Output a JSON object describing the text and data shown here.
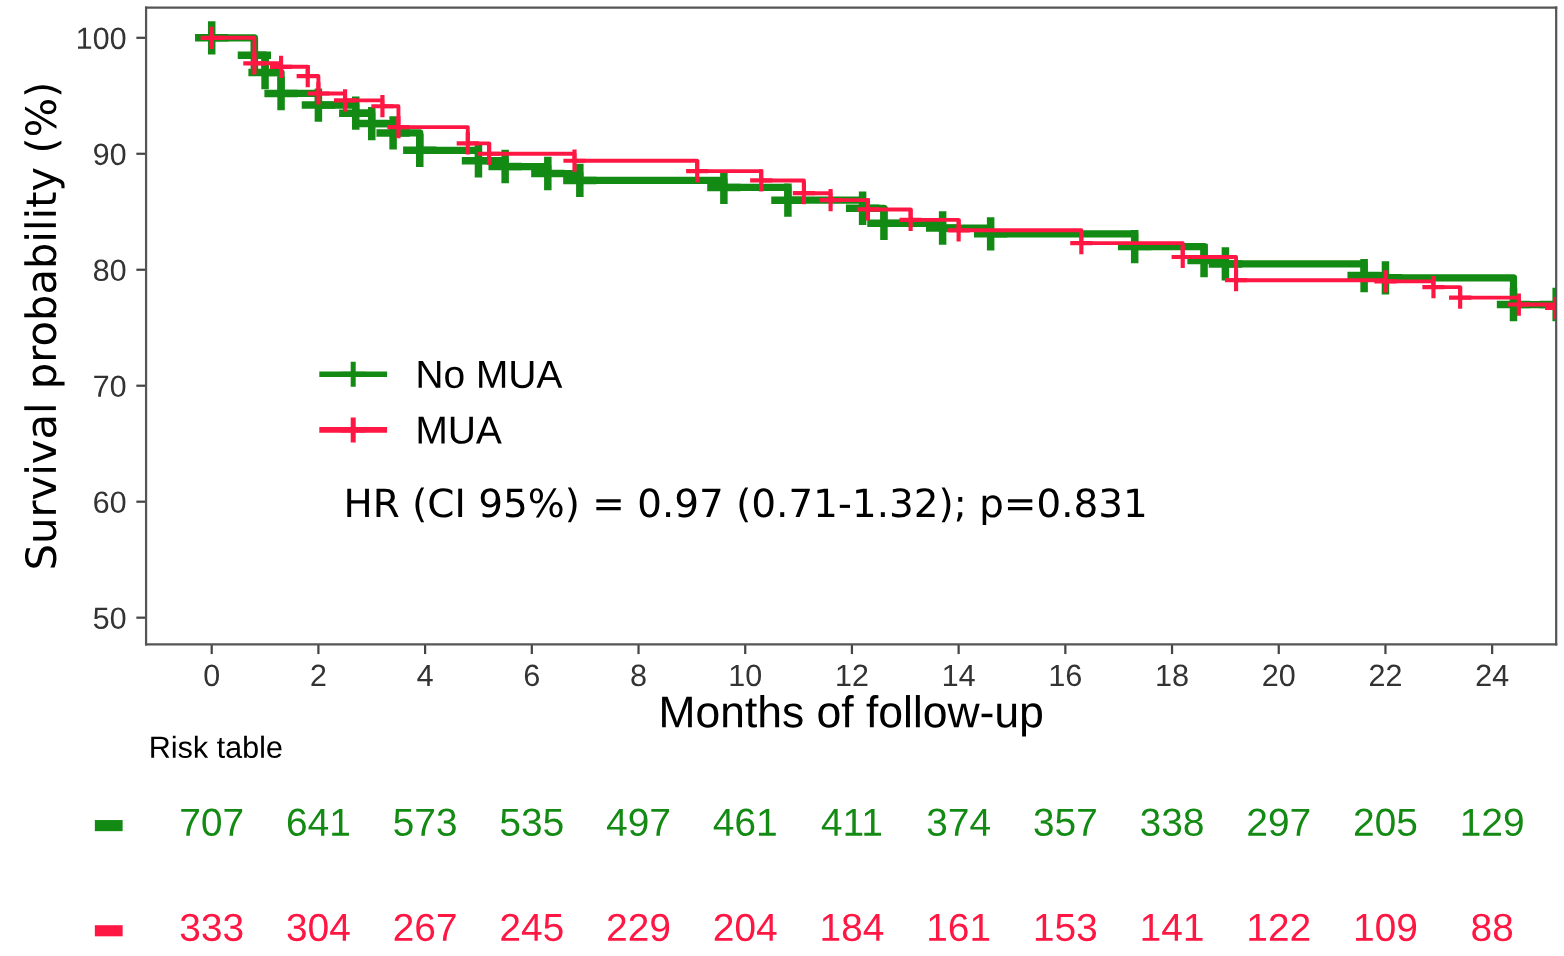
{
  "chart_data": [
    {
      "type": "step",
      "xlabel": "Months of follow-up",
      "ylabel": "Survival probability (%)",
      "xlim": [
        -1.23,
        25.2
      ],
      "ylim": [
        47.7,
        102.6
      ],
      "xticks": [
        0,
        2,
        4,
        6,
        8,
        10,
        12,
        14,
        16,
        18,
        20,
        22,
        24
      ],
      "yticks": [
        50,
        60,
        70,
        80,
        90,
        100
      ],
      "marker": "cross",
      "grid": false,
      "legend": "left",
      "annotations": [
        "HR (CI 95%) = 0.97 (0.71-1.32); p=0.831"
      ],
      "series": [
        {
          "name": "No MUA",
          "color": "#138a13",
          "x": [
            0,
            0.8,
            1.0,
            1.3,
            2.0,
            2.7,
            3.0,
            3.4,
            3.9,
            5.0,
            5.5,
            6.3,
            6.9,
            9.6,
            10.8,
            12.2,
            12.6,
            13.7,
            14.6,
            17.3,
            18.6,
            19.0,
            21.6,
            22.0,
            24.4,
            25.2
          ],
          "values": [
            100,
            98.5,
            97.0,
            95.2,
            94.2,
            93.5,
            92.6,
            91.8,
            90.3,
            89.4,
            88.9,
            88.3,
            87.7,
            87.1,
            86.0,
            85.3,
            84.0,
            83.6,
            83.1,
            82.0,
            80.8,
            80.5,
            79.5,
            79.3,
            77.0,
            77.0
          ]
        },
        {
          "name": "MUA",
          "color": "#ff1744",
          "x": [
            0,
            0.8,
            1.3,
            1.8,
            2.0,
            2.5,
            3.2,
            3.5,
            4.8,
            5.2,
            6.8,
            9.1,
            10.3,
            11.1,
            11.6,
            12.3,
            13.1,
            14.0,
            16.3,
            18.2,
            19.2,
            22.0,
            22.9,
            23.4,
            24.5,
            25.2
          ],
          "values": [
            100,
            97.8,
            97.5,
            96.7,
            95.2,
            94.6,
            94.1,
            92.3,
            90.9,
            90.0,
            89.4,
            88.5,
            87.7,
            86.6,
            86.0,
            85.2,
            84.3,
            83.4,
            82.3,
            81.1,
            79.1,
            79.0,
            78.5,
            77.6,
            77.0,
            76.7
          ]
        }
      ]
    },
    {
      "type": "other",
      "title": "Risk table",
      "colors": [
        "#138a13",
        "#ff1744"
      ],
      "annotations": [
        "707",
        "641",
        "573",
        "535",
        "497",
        "461",
        "411",
        "374",
        "357",
        "338",
        "297",
        "205",
        "129",
        "333",
        "304",
        "267",
        "245",
        "229",
        "204",
        "184",
        "161",
        "153",
        "141",
        "122",
        "109",
        "88"
      ]
    }
  ]
}
